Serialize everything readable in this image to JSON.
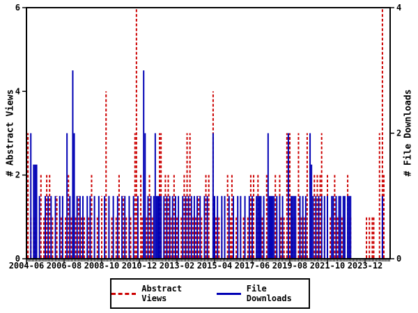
{
  "chart_data": {
    "type": "bar",
    "style": "impulses (vertical spikes, monthly time series)",
    "title": "",
    "x_axis": {
      "label": "",
      "tick_labels": [
        "2004-06",
        "2006-08",
        "2008-10",
        "2010-12",
        "2013-02",
        "2015-04",
        "2017-06",
        "2019-08",
        "2021-10",
        "2023-12"
      ],
      "tick_interval_months": 26,
      "range_months": [
        "2004-06",
        "2025-05"
      ],
      "minor_ticks": "monthly"
    },
    "y_axis_left": {
      "label": "# Abstract Views",
      "range": [
        0,
        6
      ],
      "ticks": [
        0,
        2,
        4,
        6
      ]
    },
    "y_axis_right": {
      "label": "# File Downloads",
      "range": [
        0,
        4
      ],
      "ticks": [
        0,
        2,
        4
      ]
    },
    "grid": false,
    "legend_position": "below-center-boxed",
    "series": [
      {
        "name": "Abstract Views",
        "axis": "left",
        "color": "#cc0000",
        "line_style": "dashed",
        "points": [
          [
            "2004-07",
            3
          ],
          [
            "2004-09",
            1
          ],
          [
            "2004-11",
            1
          ],
          [
            "2005-01",
            1
          ],
          [
            "2005-04",
            2
          ],
          [
            "2005-06",
            1
          ],
          [
            "2005-08",
            2
          ],
          [
            "2005-10",
            2
          ],
          [
            "2005-12",
            1
          ],
          [
            "2006-03",
            1.5
          ],
          [
            "2006-06",
            1
          ],
          [
            "2006-09",
            1
          ],
          [
            "2006-11",
            2
          ],
          [
            "2007-01",
            1
          ],
          [
            "2007-04",
            1
          ],
          [
            "2007-06",
            1.5
          ],
          [
            "2007-08",
            1
          ],
          [
            "2007-10",
            1
          ],
          [
            "2008-01",
            1
          ],
          [
            "2008-03",
            2
          ],
          [
            "2008-05",
            1
          ],
          [
            "2008-07",
            1
          ],
          [
            "2008-10",
            1.5
          ],
          [
            "2009-01",
            4
          ],
          [
            "2009-03",
            1
          ],
          [
            "2009-05",
            1
          ],
          [
            "2009-08",
            1
          ],
          [
            "2009-10",
            2
          ],
          [
            "2010-01",
            1.5
          ],
          [
            "2010-03",
            1
          ],
          [
            "2010-06",
            1
          ],
          [
            "2010-09",
            3
          ],
          [
            "2010-10",
            6
          ],
          [
            "2011-01",
            2
          ],
          [
            "2011-02",
            1
          ],
          [
            "2011-05",
            1
          ],
          [
            "2011-07",
            2
          ],
          [
            "2011-09",
            1
          ],
          [
            "2012-02",
            3
          ],
          [
            "2012-03",
            3
          ],
          [
            "2012-05",
            1
          ],
          [
            "2012-06",
            2
          ],
          [
            "2012-08",
            2
          ],
          [
            "2012-10",
            1
          ],
          [
            "2012-12",
            2
          ],
          [
            "2013-02",
            1
          ],
          [
            "2013-05",
            1
          ],
          [
            "2013-07",
            2
          ],
          [
            "2013-09",
            3
          ],
          [
            "2013-11",
            3
          ],
          [
            "2014-01",
            1
          ],
          [
            "2014-03",
            1
          ],
          [
            "2014-05",
            1.5
          ],
          [
            "2014-07",
            1
          ],
          [
            "2014-10",
            2
          ],
          [
            "2014-12",
            2
          ],
          [
            "2015-03",
            4
          ],
          [
            "2015-05",
            1
          ],
          [
            "2015-07",
            1
          ],
          [
            "2015-09",
            1
          ],
          [
            "2016-01",
            2
          ],
          [
            "2016-03",
            1
          ],
          [
            "2016-04",
            2
          ],
          [
            "2016-07",
            1
          ],
          [
            "2016-10",
            1
          ],
          [
            "2016-12",
            1
          ],
          [
            "2017-03",
            1
          ],
          [
            "2017-05",
            2
          ],
          [
            "2017-06",
            1
          ],
          [
            "2017-07",
            2
          ],
          [
            "2017-09",
            1
          ],
          [
            "2017-10",
            2
          ],
          [
            "2017-11",
            1
          ],
          [
            "2018-01",
            1
          ],
          [
            "2018-04",
            2
          ],
          [
            "2018-07",
            1
          ],
          [
            "2018-10",
            2
          ],
          [
            "2018-11",
            1
          ],
          [
            "2019-01",
            2
          ],
          [
            "2019-02",
            1
          ],
          [
            "2019-04",
            1
          ],
          [
            "2019-06",
            3
          ],
          [
            "2019-08",
            3
          ],
          [
            "2019-10",
            1
          ],
          [
            "2019-12",
            1
          ],
          [
            "2020-02",
            3
          ],
          [
            "2020-04",
            1
          ],
          [
            "2020-06",
            1
          ],
          [
            "2020-08",
            3
          ],
          [
            "2020-10",
            1
          ],
          [
            "2021-01",
            2
          ],
          [
            "2021-03",
            2
          ],
          [
            "2021-05",
            2
          ],
          [
            "2021-06",
            3
          ],
          [
            "2021-08",
            1
          ],
          [
            "2021-10",
            2
          ],
          [
            "2021-12",
            1
          ],
          [
            "2022-03",
            2
          ],
          [
            "2022-05",
            1
          ],
          [
            "2022-08",
            1
          ],
          [
            "2022-10",
            1
          ],
          [
            "2022-12",
            2
          ],
          [
            "2023-02",
            1
          ],
          [
            "2024-01",
            1
          ],
          [
            "2024-03",
            1
          ],
          [
            "2024-05",
            1
          ],
          [
            "2024-06",
            1
          ],
          [
            "2024-10",
            3
          ],
          [
            "2024-12",
            6
          ],
          [
            "2025-01",
            2
          ]
        ]
      },
      {
        "name": "File Downloads",
        "axis": "right",
        "color": "#0000b4",
        "line_style": "solid",
        "points": [
          [
            "2004-09",
            2
          ],
          [
            "2004-11",
            1.5
          ],
          [
            "2004-12",
            1.5
          ],
          [
            "2005-01",
            1.5
          ],
          [
            "2005-03",
            1
          ],
          [
            "2005-07",
            1
          ],
          [
            "2005-09",
            1
          ],
          [
            "2005-11",
            1
          ],
          [
            "2006-02",
            1
          ],
          [
            "2006-05",
            1
          ],
          [
            "2006-07",
            1
          ],
          [
            "2006-10",
            2
          ],
          [
            "2006-12",
            1
          ],
          [
            "2007-02",
            3
          ],
          [
            "2007-03",
            2
          ],
          [
            "2007-05",
            1
          ],
          [
            "2007-07",
            1
          ],
          [
            "2007-09",
            1
          ],
          [
            "2007-12",
            1
          ],
          [
            "2008-02",
            1
          ],
          [
            "2008-05",
            1
          ],
          [
            "2008-08",
            1
          ],
          [
            "2008-12",
            1
          ],
          [
            "2009-03",
            1
          ],
          [
            "2009-06",
            1
          ],
          [
            "2009-09",
            1
          ],
          [
            "2009-12",
            1
          ],
          [
            "2010-02",
            1
          ],
          [
            "2010-05",
            1
          ],
          [
            "2010-08",
            1
          ],
          [
            "2010-11",
            1
          ],
          [
            "2011-03",
            3
          ],
          [
            "2011-04",
            2
          ],
          [
            "2011-06",
            1
          ],
          [
            "2011-08",
            1
          ],
          [
            "2011-10",
            1
          ],
          [
            "2011-11",
            2
          ],
          [
            "2011-12",
            1
          ],
          [
            "2012-01",
            1
          ],
          [
            "2012-02",
            1
          ],
          [
            "2012-03",
            1
          ],
          [
            "2012-05",
            1
          ],
          [
            "2012-07",
            1
          ],
          [
            "2012-09",
            1
          ],
          [
            "2012-11",
            1
          ],
          [
            "2013-01",
            1
          ],
          [
            "2013-03",
            1
          ],
          [
            "2013-06",
            1
          ],
          [
            "2013-08",
            1
          ],
          [
            "2013-10",
            1
          ],
          [
            "2013-12",
            1
          ],
          [
            "2014-02",
            1
          ],
          [
            "2014-04",
            1
          ],
          [
            "2014-06",
            1
          ],
          [
            "2014-09",
            1
          ],
          [
            "2014-11",
            1
          ],
          [
            "2015-03",
            2
          ],
          [
            "2015-04",
            1
          ],
          [
            "2015-06",
            1
          ],
          [
            "2015-09",
            1
          ],
          [
            "2015-11",
            1
          ],
          [
            "2016-02",
            1
          ],
          [
            "2016-05",
            1
          ],
          [
            "2016-08",
            1
          ],
          [
            "2016-10",
            1
          ],
          [
            "2017-01",
            1
          ],
          [
            "2017-04",
            1
          ],
          [
            "2017-06",
            1
          ],
          [
            "2017-09",
            1
          ],
          [
            "2017-10",
            1
          ],
          [
            "2017-11",
            1
          ],
          [
            "2017-12",
            1
          ],
          [
            "2018-02",
            1
          ],
          [
            "2018-05",
            2
          ],
          [
            "2018-06",
            1
          ],
          [
            "2018-07",
            1
          ],
          [
            "2018-08",
            1
          ],
          [
            "2018-09",
            1
          ],
          [
            "2018-11",
            1
          ],
          [
            "2019-01",
            1
          ],
          [
            "2019-03",
            1
          ],
          [
            "2019-07",
            2
          ],
          [
            "2019-09",
            1
          ],
          [
            "2019-10",
            1
          ],
          [
            "2019-11",
            1
          ],
          [
            "2019-12",
            1
          ],
          [
            "2020-03",
            1
          ],
          [
            "2020-05",
            1
          ],
          [
            "2020-07",
            1
          ],
          [
            "2020-10",
            2
          ],
          [
            "2020-11",
            1.5
          ],
          [
            "2020-12",
            1
          ],
          [
            "2021-02",
            1
          ],
          [
            "2021-04",
            1
          ],
          [
            "2021-06",
            1
          ],
          [
            "2021-08",
            1
          ],
          [
            "2021-10",
            1
          ],
          [
            "2022-01",
            1
          ],
          [
            "2022-02",
            1
          ],
          [
            "2022-04",
            1
          ],
          [
            "2022-06",
            1
          ],
          [
            "2022-07",
            1
          ],
          [
            "2022-09",
            1
          ],
          [
            "2022-10",
            1
          ],
          [
            "2022-12",
            1
          ],
          [
            "2023-01",
            1
          ],
          [
            "2023-02",
            1
          ],
          [
            "2024-12",
            1
          ]
        ]
      }
    ]
  },
  "colors": {
    "axis": "#000000",
    "background": "#ffffff"
  }
}
